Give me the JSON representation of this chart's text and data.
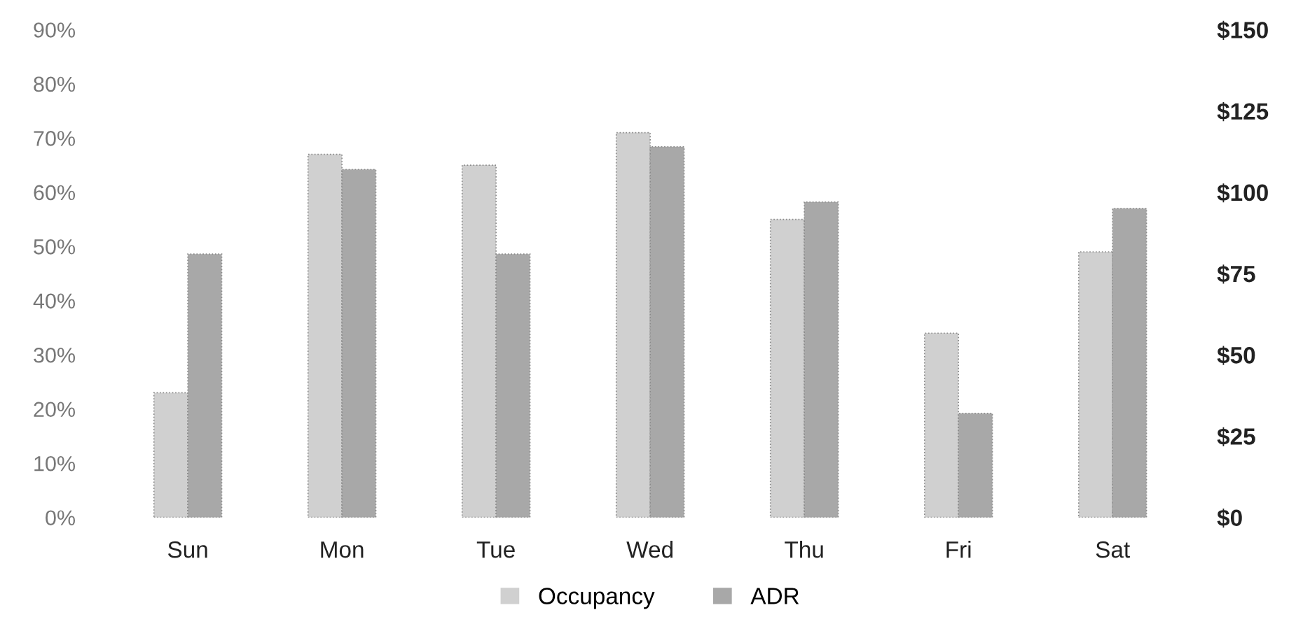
{
  "chart_data": {
    "type": "bar",
    "categories": [
      "Sun",
      "Mon",
      "Tue",
      "Wed",
      "Thu",
      "Fri",
      "Sat"
    ],
    "series": [
      {
        "name": "Occupancy",
        "color": "#d0d0d0",
        "values": [
          23,
          67,
          65,
          71,
          55,
          34,
          49
        ]
      },
      {
        "name": "ADR",
        "color": "#a8a8a8",
        "axis": "y2",
        "values": [
          81,
          107,
          81,
          114,
          97,
          32,
          95
        ]
      }
    ],
    "ylim": [
      0,
      90
    ],
    "yticks": [
      {
        "value": 0,
        "label": "0%"
      },
      {
        "value": 10,
        "label": "10%"
      },
      {
        "value": 20,
        "label": "20%"
      },
      {
        "value": 30,
        "label": "30%"
      },
      {
        "value": 40,
        "label": "40%"
      },
      {
        "value": 50,
        "label": "50%"
      },
      {
        "value": 60,
        "label": "60%"
      },
      {
        "value": 70,
        "label": "70%"
      },
      {
        "value": 80,
        "label": "80%"
      },
      {
        "value": 90,
        "label": "90%"
      }
    ],
    "y2lim": [
      0,
      150
    ],
    "y2ticks": [
      {
        "value": 0,
        "label": "$0"
      },
      {
        "value": 25,
        "label": "$25"
      },
      {
        "value": 50,
        "label": "$50"
      },
      {
        "value": 75,
        "label": "$75"
      },
      {
        "value": 100,
        "label": "$100"
      },
      {
        "value": 125,
        "label": "$125"
      },
      {
        "value": 150,
        "label": "$150"
      }
    ],
    "grid": false,
    "legend": "bottom"
  }
}
